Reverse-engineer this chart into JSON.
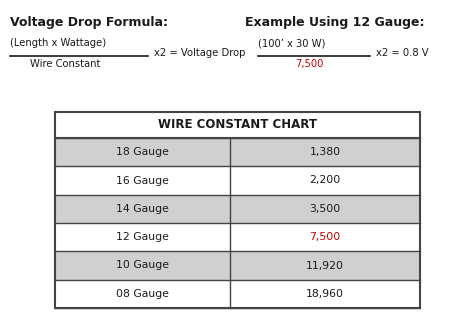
{
  "title_left": "Voltage Drop Formula:",
  "title_right": "Example Using 12 Gauge:",
  "formula_numerator": "(Length x Wattage)",
  "formula_denominator": "Wire Constant",
  "formula_suffix": "x2 = Voltage Drop",
  "example_numerator": "(100’ x 30 W)",
  "example_denominator": "7,500",
  "example_suffix": "x2 = 0.8 V",
  "table_title": "WIRE CONSTANT CHART",
  "table_rows": [
    [
      "18 Gauge",
      "1,380"
    ],
    [
      "16 Gauge",
      "2,200"
    ],
    [
      "14 Gauge",
      "3,500"
    ],
    [
      "12 Gauge",
      "7,500"
    ],
    [
      "10 Gauge",
      "11,920"
    ],
    [
      "08 Gauge",
      "18,960"
    ]
  ],
  "highlight_row": 3,
  "highlight_color": "#cc0000",
  "row_bg_odd": "#d0d0d0",
  "row_bg_even": "#ffffff",
  "table_header_bg": "#ffffff",
  "bg_color": "#ffffff",
  "text_color": "#1a1a1a",
  "border_color": "#444444",
  "title_fontsize": 9.0,
  "formula_fontsize": 7.2,
  "table_title_fontsize": 8.5,
  "table_cell_fontsize": 7.8
}
